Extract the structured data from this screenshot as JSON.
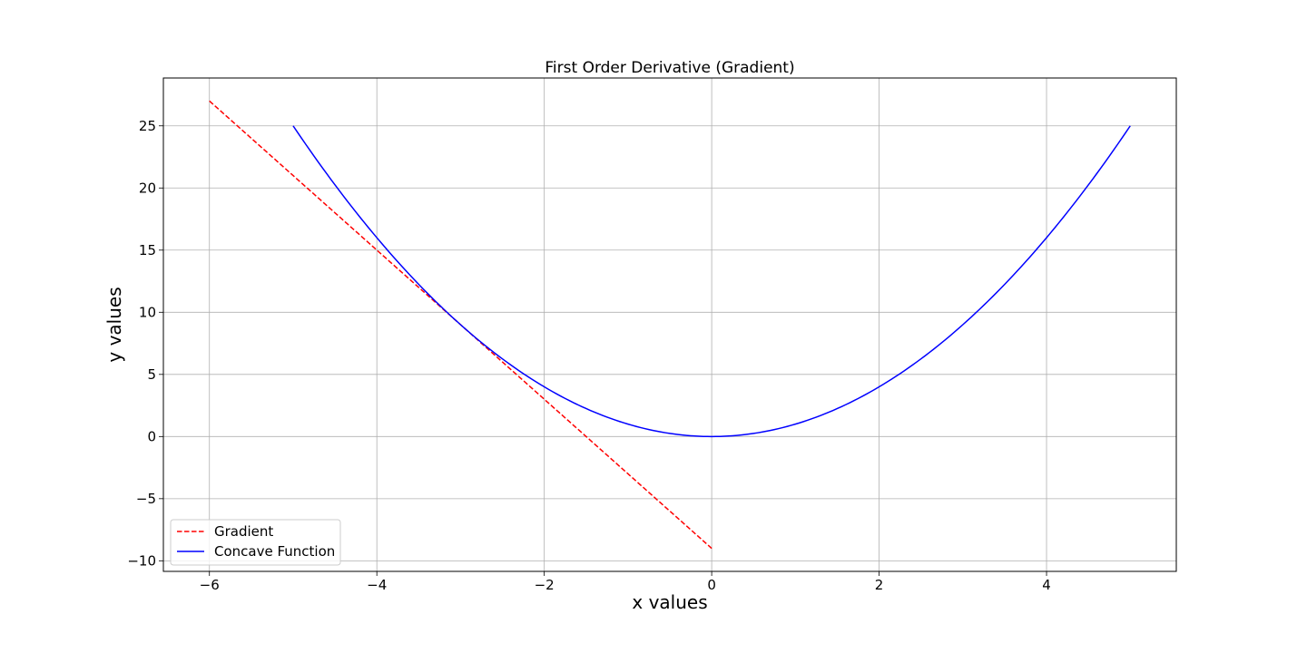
{
  "chart_data": {
    "type": "line",
    "title": "First Order Derivative (Gradient)",
    "xlabel": "x values",
    "ylabel": "y values",
    "xlim": [
      -6.55,
      5.55
    ],
    "ylim": [
      -10.85,
      28.85
    ],
    "xticks": [
      -6,
      -4,
      -2,
      0,
      2,
      4
    ],
    "xtick_labels": [
      "−6",
      "−4",
      "−2",
      "0",
      "2",
      "4"
    ],
    "yticks": [
      -10,
      -5,
      0,
      5,
      10,
      15,
      20,
      25
    ],
    "ytick_labels": [
      "−10",
      "−5",
      "0",
      "5",
      "10",
      "15",
      "20",
      "25"
    ],
    "grid": true,
    "legend_position": "lower-left",
    "series": [
      {
        "name": "Gradient",
        "style": "dashed",
        "color": "#ff0000",
        "x": [
          -6,
          0
        ],
        "y": [
          27,
          -9
        ]
      },
      {
        "name": "Concave Function",
        "style": "solid",
        "color": "#0000ff",
        "function": "y = x^2",
        "x": [
          -5,
          -4,
          -3,
          -2,
          -1,
          0,
          1,
          2,
          3,
          4,
          5
        ],
        "y": [
          25,
          16,
          9,
          4,
          1,
          0,
          1,
          4,
          9,
          16,
          25
        ]
      }
    ]
  }
}
